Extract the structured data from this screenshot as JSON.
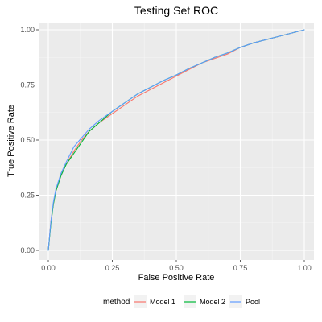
{
  "chart_data": {
    "type": "line",
    "title": "Testing Set ROC",
    "xlabel": "False Positive Rate",
    "ylabel": "True Positive Rate",
    "xlim": [
      0,
      1
    ],
    "ylim": [
      0,
      1
    ],
    "xticks": [
      "0.00",
      "0.25",
      "0.50",
      "0.75",
      "1.00"
    ],
    "yticks": [
      "0.00",
      "0.25",
      "0.50",
      "0.75",
      "1.00"
    ],
    "grid": true,
    "legend": {
      "title": "method",
      "position": "bottom"
    },
    "series": [
      {
        "name": "Model 1",
        "color": "#F8766D",
        "x": [
          0.0,
          0.01,
          0.02,
          0.03,
          0.05,
          0.07,
          0.1,
          0.13,
          0.16,
          0.2,
          0.25,
          0.3,
          0.35,
          0.4,
          0.45,
          0.5,
          0.55,
          0.6,
          0.65,
          0.7,
          0.75,
          0.8,
          0.85,
          0.9,
          0.95,
          1.0
        ],
        "y": [
          0.0,
          0.13,
          0.21,
          0.27,
          0.34,
          0.39,
          0.45,
          0.5,
          0.54,
          0.58,
          0.62,
          0.66,
          0.7,
          0.73,
          0.76,
          0.79,
          0.82,
          0.85,
          0.87,
          0.89,
          0.92,
          0.94,
          0.955,
          0.97,
          0.985,
          1.0
        ]
      },
      {
        "name": "Model 2",
        "color": "#00BA38",
        "x": [
          0.0,
          0.01,
          0.02,
          0.03,
          0.05,
          0.07,
          0.1,
          0.13,
          0.16,
          0.2,
          0.25,
          0.3,
          0.35,
          0.4,
          0.45,
          0.5,
          0.55,
          0.6,
          0.65,
          0.7,
          0.75,
          0.8,
          0.85,
          0.9,
          0.95,
          1.0
        ],
        "y": [
          0.0,
          0.12,
          0.21,
          0.27,
          0.34,
          0.39,
          0.44,
          0.49,
          0.54,
          0.58,
          0.63,
          0.67,
          0.71,
          0.74,
          0.77,
          0.795,
          0.825,
          0.85,
          0.875,
          0.895,
          0.92,
          0.94,
          0.955,
          0.97,
          0.985,
          1.0
        ]
      },
      {
        "name": "Pool",
        "color": "#619CFF",
        "x": [
          0.0,
          0.01,
          0.02,
          0.03,
          0.05,
          0.07,
          0.1,
          0.13,
          0.16,
          0.2,
          0.25,
          0.3,
          0.35,
          0.4,
          0.45,
          0.5,
          0.55,
          0.6,
          0.65,
          0.7,
          0.75,
          0.8,
          0.85,
          0.9,
          0.95,
          1.0
        ],
        "y": [
          0.0,
          0.13,
          0.22,
          0.28,
          0.35,
          0.4,
          0.47,
          0.51,
          0.55,
          0.59,
          0.63,
          0.67,
          0.71,
          0.74,
          0.77,
          0.795,
          0.825,
          0.85,
          0.875,
          0.895,
          0.92,
          0.94,
          0.955,
          0.97,
          0.985,
          1.0
        ]
      }
    ]
  }
}
